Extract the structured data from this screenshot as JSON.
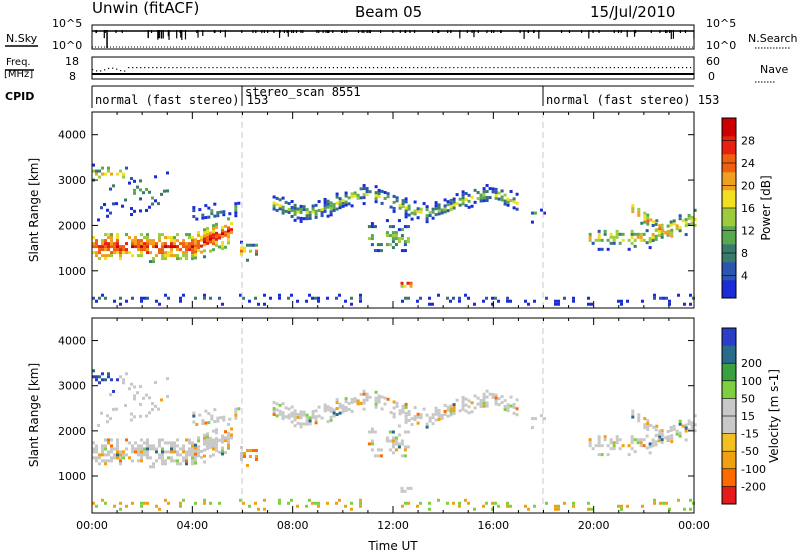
{
  "header": {
    "station": "Unwin (fitACF)",
    "beam": "Beam 05",
    "date": "15/Jul/2010"
  },
  "strips": {
    "nsky_label": "N.Sky",
    "nsky_ticks": [
      "10^5",
      "10^0"
    ],
    "nsearch_label": "N.Search",
    "nsearch_ticks": [
      "10^5",
      "10^0"
    ],
    "freq_label": "Freq.",
    "freq_unit": "[MHz]",
    "freq_ticks": [
      "18",
      "8"
    ],
    "nave_label": "Nave",
    "nave_ticks": [
      "60",
      "0"
    ],
    "cpid_label": "CPID",
    "cpid_segments": [
      {
        "label": "normal (fast stereo) 153",
        "start": 0
      },
      {
        "label": "stereo_scan 8551",
        "start": 6
      },
      {
        "label": "normal (fast stereo) 153",
        "start": 18
      }
    ]
  },
  "colors": {
    "power": [
      "#1a2bd8",
      "#2a55b0",
      "#3a7a6a",
      "#58a850",
      "#9ccc3c",
      "#f0e020",
      "#f0a020",
      "#f06010",
      "#e82010",
      "#cc0000"
    ],
    "velocity": [
      "#e41a1c",
      "#ff6a00",
      "#f0a010",
      "#f2c020",
      "#c8c8c8",
      "#c8c8c8",
      "#7fd040",
      "#3aa040",
      "#2a6a8a",
      "#2a3fc8"
    ]
  },
  "chart_data": [
    {
      "type": "heatmap",
      "name": "power-panel",
      "xlabel": "",
      "ylabel": "Slant Range [km]",
      "x_range": [
        0,
        24
      ],
      "ylim": [
        180,
        4500
      ],
      "y_ticks": [
        1000,
        2000,
        3000,
        4000
      ],
      "colorbar": {
        "label": "Power [dB]",
        "ticks": [
          "4",
          "8",
          "12",
          "16",
          "20",
          "24",
          "28"
        ],
        "range": [
          0,
          32
        ]
      }
    },
    {
      "type": "heatmap",
      "name": "velocity-panel",
      "xlabel": "Time UT",
      "ylabel": "Slant Range [km]",
      "x_range": [
        0,
        24
      ],
      "x_tick_labels": [
        "00:00",
        "04:00",
        "08:00",
        "12:00",
        "16:00",
        "20:00",
        "00:00"
      ],
      "ylim": [
        180,
        4500
      ],
      "y_ticks": [
        1000,
        2000,
        3000,
        4000
      ],
      "colorbar": {
        "label": "Velocity [m s-1]",
        "ticks": [
          "-200",
          "-100",
          "-50",
          "-15",
          "15",
          "50",
          "100",
          "200"
        ]
      }
    }
  ]
}
